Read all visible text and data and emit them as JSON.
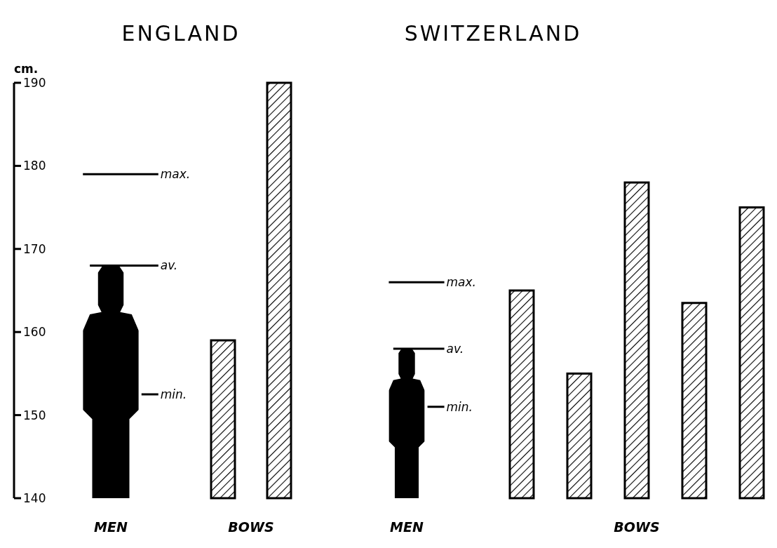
{
  "chart_data": [
    {
      "type": "bar",
      "title": "ENGLAND",
      "ylabel": "cm.",
      "categories": [
        "MEN",
        "BOWS"
      ],
      "ylim": [
        140,
        190
      ],
      "yticks": [
        140,
        150,
        160,
        170,
        180,
        190
      ],
      "series": [
        {
          "color": "#000000",
          "values": [
            168,
            null
          ]
        },
        {
          "color": "#000000",
          "values": [
            null,
            159
          ]
        },
        {
          "color": "#000000",
          "values": [
            null,
            190
          ]
        }
      ],
      "ref_lines": [
        {
          "axis": "y",
          "value": 179,
          "label": "max."
        },
        {
          "axis": "y",
          "value": 168,
          "label": "av."
        },
        {
          "axis": "y",
          "value": 152.5,
          "label": "min."
        }
      ]
    },
    {
      "type": "bar",
      "title": "SWITZERLAND",
      "categories": [
        "MEN",
        "BOWS"
      ],
      "ylim": [
        140,
        190
      ],
      "tick_labels": false,
      "series": [
        {
          "color": "#000000",
          "values": [
            158,
            null
          ]
        },
        {
          "color": "#000000",
          "values": [
            null,
            165
          ]
        },
        {
          "color": "#000000",
          "values": [
            null,
            155
          ]
        },
        {
          "color": "#000000",
          "values": [
            null,
            178
          ]
        },
        {
          "color": "#000000",
          "values": [
            null,
            163.5
          ]
        },
        {
          "color": "#000000",
          "values": [
            null,
            175
          ]
        }
      ],
      "ref_lines": [
        {
          "axis": "y",
          "value": 166,
          "label": "max."
        },
        {
          "axis": "y",
          "value": 158,
          "label": "av."
        },
        {
          "axis": "y",
          "value": 151,
          "label": "min."
        }
      ]
    }
  ]
}
